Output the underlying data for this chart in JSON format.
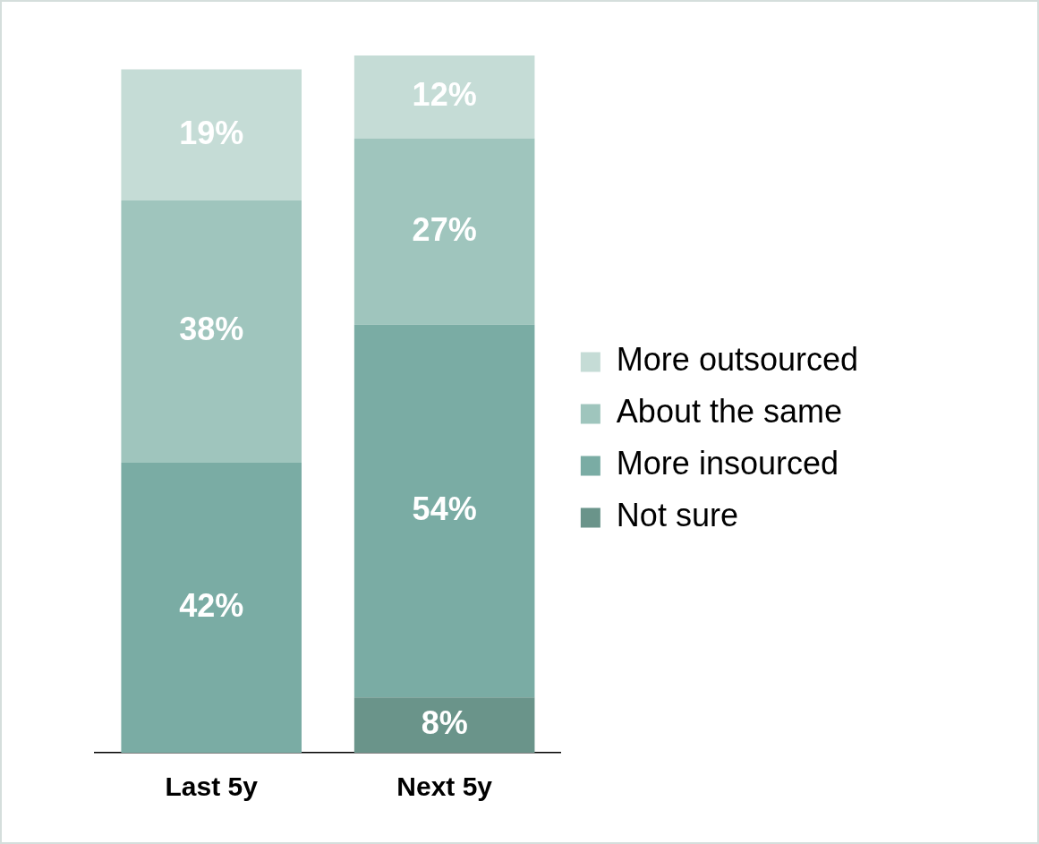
{
  "chart_data": {
    "type": "bar",
    "stacked": true,
    "categories": [
      "Last 5y",
      "Next 5y"
    ],
    "series": [
      {
        "name": "Not sure",
        "color": "#6a948a",
        "values": [
          null,
          8
        ],
        "value_labels": [
          null,
          "8%"
        ]
      },
      {
        "name": "More insourced",
        "color": "#7aaca4",
        "values": [
          42,
          54
        ],
        "value_labels": [
          "42%",
          "54%"
        ]
      },
      {
        "name": "About the same",
        "color": "#9fc5bd",
        "values": [
          38,
          27
        ],
        "value_labels": [
          "38%",
          "27%"
        ]
      },
      {
        "name": "More outsourced",
        "color": "#c5dcd6",
        "values": [
          19,
          12
        ],
        "value_labels": [
          "19%",
          "12%"
        ]
      }
    ],
    "tick_labels": "x",
    "legend": "right",
    "grid": false
  }
}
